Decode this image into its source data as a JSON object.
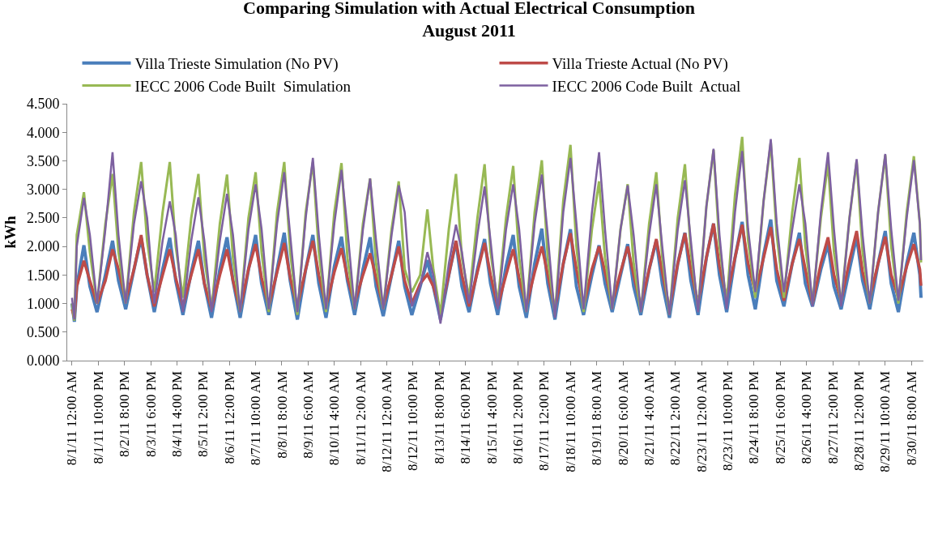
{
  "chart_data": {
    "type": "line",
    "title": "Comparing Simulation with Actual Electrical Consumption\nAugust 2011",
    "ylabel": "kWh",
    "x": [
      "2011-08-01T00:00",
      "2011-08-01T02:00",
      "2011-08-01T04:00",
      "2011-08-01T10:00",
      "2011-08-01T15:00",
      "2011-08-01T21:00",
      "2011-08-02T04:00",
      "2011-08-02T10:00",
      "2011-08-02T15:00",
      "2011-08-02T21:00",
      "2011-08-03T04:00",
      "2011-08-03T10:00",
      "2011-08-03T15:00",
      "2011-08-03T21:00",
      "2011-08-04T04:00",
      "2011-08-04T10:00",
      "2011-08-04T15:00",
      "2011-08-04T21:00",
      "2011-08-05T04:00",
      "2011-08-05T10:00",
      "2011-08-05T15:00",
      "2011-08-05T21:00",
      "2011-08-06T04:00",
      "2011-08-06T10:00",
      "2011-08-06T15:00",
      "2011-08-06T21:00",
      "2011-08-07T04:00",
      "2011-08-07T10:00",
      "2011-08-07T15:00",
      "2011-08-07T21:00",
      "2011-08-08T04:00",
      "2011-08-08T10:00",
      "2011-08-08T15:00",
      "2011-08-08T21:00",
      "2011-08-09T04:00",
      "2011-08-09T10:00",
      "2011-08-09T15:00",
      "2011-08-09T21:00",
      "2011-08-10T04:00",
      "2011-08-10T10:00",
      "2011-08-10T15:00",
      "2011-08-10T21:00",
      "2011-08-11T04:00",
      "2011-08-11T10:00",
      "2011-08-11T15:00",
      "2011-08-11T21:00",
      "2011-08-12T04:00",
      "2011-08-12T10:00",
      "2011-08-12T15:00",
      "2011-08-12T21:00",
      "2011-08-13T04:00",
      "2011-08-13T10:00",
      "2011-08-13T15:00",
      "2011-08-13T21:00",
      "2011-08-14T04:00",
      "2011-08-14T10:00",
      "2011-08-14T15:00",
      "2011-08-14T21:00",
      "2011-08-15T04:00",
      "2011-08-15T10:00",
      "2011-08-15T15:00",
      "2011-08-15T21:00",
      "2011-08-16T04:00",
      "2011-08-16T10:00",
      "2011-08-16T15:00",
      "2011-08-16T21:00",
      "2011-08-17T04:00",
      "2011-08-17T10:00",
      "2011-08-17T15:00",
      "2011-08-17T21:00",
      "2011-08-18T04:00",
      "2011-08-18T10:00",
      "2011-08-18T15:00",
      "2011-08-18T21:00",
      "2011-08-19T04:00",
      "2011-08-19T10:00",
      "2011-08-19T15:00",
      "2011-08-19T21:00",
      "2011-08-20T04:00",
      "2011-08-20T10:00",
      "2011-08-20T15:00",
      "2011-08-20T21:00",
      "2011-08-21T04:00",
      "2011-08-21T10:00",
      "2011-08-21T15:00",
      "2011-08-21T21:00",
      "2011-08-22T04:00",
      "2011-08-22T10:00",
      "2011-08-22T15:00",
      "2011-08-22T21:00",
      "2011-08-23T04:00",
      "2011-08-23T10:00",
      "2011-08-23T15:00",
      "2011-08-23T21:00",
      "2011-08-24T04:00",
      "2011-08-24T10:00",
      "2011-08-24T15:00",
      "2011-08-24T21:00",
      "2011-08-25T04:00",
      "2011-08-25T10:00",
      "2011-08-25T15:00",
      "2011-08-25T21:00",
      "2011-08-26T04:00",
      "2011-08-26T10:00",
      "2011-08-26T15:00",
      "2011-08-26T21:00",
      "2011-08-27T04:00",
      "2011-08-27T10:00",
      "2011-08-27T15:00",
      "2011-08-27T21:00",
      "2011-08-28T04:00",
      "2011-08-28T10:00",
      "2011-08-28T15:00",
      "2011-08-28T21:00",
      "2011-08-29T04:00",
      "2011-08-29T10:00",
      "2011-08-29T15:00",
      "2011-08-29T21:00",
      "2011-08-30T04:00",
      "2011-08-30T10:00",
      "2011-08-30T15:00",
      "2011-08-30T16:00"
    ],
    "series": [
      {
        "name": "Villa Trieste Simulation (No PV)",
        "color": "#4a7ebb",
        "values": [
          1.0,
          0.68,
          1.3,
          2.02,
          1.3,
          0.85,
          1.5,
          2.1,
          1.4,
          0.9,
          1.6,
          2.15,
          1.5,
          0.85,
          1.6,
          2.15,
          1.4,
          0.8,
          1.55,
          2.1,
          1.35,
          0.75,
          1.6,
          2.16,
          1.4,
          0.75,
          1.6,
          2.2,
          1.35,
          0.8,
          1.6,
          2.24,
          1.4,
          0.72,
          1.6,
          2.2,
          1.35,
          0.75,
          1.65,
          2.17,
          1.4,
          0.8,
          1.6,
          2.16,
          1.3,
          0.78,
          1.5,
          2.1,
          1.3,
          0.8,
          1.3,
          1.76,
          1.3,
          0.72,
          1.5,
          2.09,
          1.3,
          0.85,
          1.6,
          2.13,
          1.35,
          0.8,
          1.65,
          2.2,
          1.3,
          0.75,
          1.7,
          2.31,
          1.35,
          0.72,
          1.7,
          2.3,
          1.3,
          0.8,
          1.5,
          2.02,
          1.35,
          0.85,
          1.5,
          2.04,
          1.3,
          0.8,
          1.6,
          2.1,
          1.35,
          0.75,
          1.7,
          2.24,
          1.4,
          0.8,
          1.8,
          2.4,
          1.5,
          0.85,
          1.8,
          2.43,
          1.5,
          0.9,
          1.85,
          2.47,
          1.4,
          0.95,
          1.7,
          2.24,
          1.35,
          0.95,
          1.6,
          2.04,
          1.3,
          0.9,
          1.6,
          2.17,
          1.4,
          0.9,
          1.7,
          2.27,
          1.35,
          0.85,
          1.7,
          2.24,
          1.5,
          1.1
        ]
      },
      {
        "name": "Villa Trieste Actual (No PV)",
        "color": "#be4b48",
        "values": [
          0.9,
          0.75,
          1.3,
          1.75,
          1.4,
          1.0,
          1.4,
          1.95,
          1.6,
          1.05,
          1.6,
          2.2,
          1.5,
          0.95,
          1.5,
          1.95,
          1.45,
          0.95,
          1.5,
          1.95,
          1.35,
          0.9,
          1.5,
          1.95,
          1.4,
          0.9,
          1.6,
          2.04,
          1.45,
          0.95,
          1.55,
          2.06,
          1.45,
          0.95,
          1.6,
          2.1,
          1.5,
          0.95,
          1.55,
          1.97,
          1.45,
          1.0,
          1.5,
          1.88,
          1.45,
          0.95,
          1.5,
          2.0,
          1.4,
          1.0,
          1.35,
          1.51,
          1.3,
          0.85,
          1.5,
          2.1,
          1.5,
          0.95,
          1.55,
          2.06,
          1.5,
          0.95,
          1.5,
          1.95,
          1.45,
          0.95,
          1.55,
          2.0,
          1.5,
          0.9,
          1.7,
          2.23,
          1.6,
          0.95,
          1.6,
          2.0,
          1.55,
          1.0,
          1.55,
          2.0,
          1.5,
          0.95,
          1.6,
          2.13,
          1.55,
          0.9,
          1.7,
          2.23,
          1.6,
          1.0,
          1.8,
          2.4,
          1.65,
          1.1,
          1.8,
          2.38,
          1.7,
          1.2,
          1.8,
          2.34,
          1.6,
          1.05,
          1.7,
          2.13,
          1.6,
          1.0,
          1.7,
          2.16,
          1.5,
          1.05,
          1.75,
          2.27,
          1.55,
          1.1,
          1.7,
          2.17,
          1.5,
          1.1,
          1.65,
          2.04,
          1.6,
          1.31
        ]
      },
      {
        "name": "IECC 2006 Code Built  Simulation",
        "color": "#98b954",
        "values": [
          1.0,
          0.7,
          2.2,
          2.95,
          1.9,
          1.0,
          2.4,
          3.27,
          1.9,
          1.0,
          2.6,
          3.48,
          2.1,
          1.2,
          2.6,
          3.48,
          2.0,
          1.1,
          2.5,
          3.27,
          1.8,
          0.9,
          2.4,
          3.26,
          1.8,
          0.85,
          2.5,
          3.3,
          1.9,
          0.85,
          2.6,
          3.48,
          1.9,
          0.8,
          2.6,
          3.48,
          1.9,
          0.85,
          2.6,
          3.46,
          1.8,
          0.9,
          2.4,
          3.19,
          1.7,
          0.9,
          2.3,
          3.14,
          1.6,
          1.2,
          1.5,
          2.65,
          1.6,
          0.8,
          2.3,
          3.27,
          1.8,
          1.1,
          2.5,
          3.44,
          1.9,
          1.0,
          2.5,
          3.41,
          1.8,
          0.85,
          2.6,
          3.51,
          1.8,
          0.8,
          2.8,
          3.78,
          2.0,
          0.85,
          2.3,
          3.14,
          1.8,
          0.9,
          2.3,
          3.09,
          1.7,
          0.85,
          2.4,
          3.3,
          1.8,
          0.8,
          2.5,
          3.44,
          1.9,
          0.9,
          2.7,
          3.69,
          2.0,
          1.0,
          2.9,
          3.92,
          2.1,
          1.1,
          2.8,
          3.82,
          2.2,
          1.1,
          2.6,
          3.55,
          2.0,
          1.0,
          2.5,
          3.46,
          1.9,
          1.0,
          2.5,
          3.5,
          1.9,
          1.0,
          2.6,
          3.6,
          2.0,
          1.0,
          2.6,
          3.58,
          2.4,
          1.72
        ]
      },
      {
        "name": "IECC 2006 Code Built  Actual",
        "color": "#7d60a0",
        "values": [
          1.1,
          0.72,
          2.0,
          2.85,
          2.2,
          1.0,
          2.3,
          3.65,
          2.2,
          1.0,
          2.4,
          3.14,
          2.5,
          1.0,
          2.1,
          2.79,
          2.2,
          0.85,
          2.1,
          2.86,
          2.1,
          0.85,
          2.1,
          2.92,
          2.2,
          0.85,
          2.3,
          3.09,
          2.3,
          0.9,
          2.4,
          3.3,
          2.2,
          0.85,
          2.5,
          3.55,
          2.2,
          0.9,
          2.4,
          3.34,
          2.3,
          0.9,
          2.3,
          3.19,
          2.1,
          0.9,
          2.2,
          3.07,
          2.6,
          0.95,
          1.3,
          1.9,
          1.5,
          0.65,
          1.7,
          2.38,
          1.9,
          1.0,
          2.2,
          3.05,
          2.1,
          0.9,
          2.3,
          3.09,
          2.3,
          0.85,
          2.4,
          3.26,
          2.2,
          0.75,
          2.6,
          3.55,
          2.4,
          0.9,
          2.6,
          3.65,
          2.3,
          0.9,
          2.3,
          3.07,
          2.2,
          0.85,
          2.2,
          3.09,
          2.0,
          0.8,
          2.3,
          3.16,
          2.1,
          0.85,
          2.7,
          3.71,
          2.2,
          0.9,
          2.6,
          3.67,
          2.3,
          1.2,
          2.8,
          3.88,
          2.4,
          1.2,
          2.3,
          3.09,
          2.4,
          0.95,
          2.6,
          3.65,
          2.3,
          0.95,
          2.5,
          3.53,
          2.2,
          1.0,
          2.6,
          3.62,
          2.3,
          1.05,
          2.5,
          3.51,
          2.4,
          1.76
        ]
      }
    ],
    "xlim": [
      "2011-07-31T20:00",
      "2011-08-30T18:00"
    ],
    "xticks": [
      {
        "value": "2011-08-01T00:00",
        "label": "8/1/11 12:00 AM"
      },
      {
        "value": "2011-08-01T22:00",
        "label": "8/1/11 10:00 PM"
      },
      {
        "value": "2011-08-02T20:00",
        "label": "8/2/11 8:00 PM"
      },
      {
        "value": "2011-08-03T18:00",
        "label": "8/3/11 6:00 PM"
      },
      {
        "value": "2011-08-04T16:00",
        "label": "8/4/11 4:00 PM"
      },
      {
        "value": "2011-08-05T14:00",
        "label": "8/5/11 2:00 PM"
      },
      {
        "value": "2011-08-06T12:00",
        "label": "8/6/11 12:00 PM"
      },
      {
        "value": "2011-08-07T10:00",
        "label": "8/7/11 10:00 AM"
      },
      {
        "value": "2011-08-08T08:00",
        "label": "8/8/11 8:00 AM"
      },
      {
        "value": "2011-08-09T06:00",
        "label": "8/9/11 6:00 AM"
      },
      {
        "value": "2011-08-10T04:00",
        "label": "8/10/11 4:00 AM"
      },
      {
        "value": "2011-08-11T02:00",
        "label": "8/11/11 2:00 AM"
      },
      {
        "value": "2011-08-12T00:00",
        "label": "8/12/11 12:00 AM"
      },
      {
        "value": "2011-08-12T22:00",
        "label": "8/12/11 10:00 PM"
      },
      {
        "value": "2011-08-13T20:00",
        "label": "8/13/11 8:00 PM"
      },
      {
        "value": "2011-08-14T18:00",
        "label": "8/14/11 6:00 PM"
      },
      {
        "value": "2011-08-15T16:00",
        "label": "8/15/11 4:00 PM"
      },
      {
        "value": "2011-08-16T14:00",
        "label": "8/16/11 2:00 PM"
      },
      {
        "value": "2011-08-17T12:00",
        "label": "8/17/11 12:00 PM"
      },
      {
        "value": "2011-08-18T10:00",
        "label": "8/18/11 10:00 AM"
      },
      {
        "value": "2011-08-19T08:00",
        "label": "8/19/11 8:00 AM"
      },
      {
        "value": "2011-08-20T06:00",
        "label": "8/20/11 6:00 AM"
      },
      {
        "value": "2011-08-21T04:00",
        "label": "8/21/11 4:00 AM"
      },
      {
        "value": "2011-08-22T02:00",
        "label": "8/22/11 2:00 AM"
      },
      {
        "value": "2011-08-23T00:00",
        "label": "8/23/11 12:00 AM"
      },
      {
        "value": "2011-08-23T22:00",
        "label": "8/23/11 10:00 PM"
      },
      {
        "value": "2011-08-24T20:00",
        "label": "8/24/11 8:00 PM"
      },
      {
        "value": "2011-08-25T18:00",
        "label": "8/25/11 6:00 PM"
      },
      {
        "value": "2011-08-26T16:00",
        "label": "8/26/11 4:00 PM"
      },
      {
        "value": "2011-08-27T14:00",
        "label": "8/27/11 2:00 PM"
      },
      {
        "value": "2011-08-28T12:00",
        "label": "8/28/11 12:00 PM"
      },
      {
        "value": "2011-08-29T10:00",
        "label": "8/29/11 10:00 AM"
      },
      {
        "value": "2011-08-30T08:00",
        "label": "8/30/11 8:00 AM"
      }
    ],
    "ylim": [
      0,
      4.5
    ],
    "yticks": [
      {
        "value": 0,
        "label": "0.000"
      },
      {
        "value": 0.5,
        "label": "0.500"
      },
      {
        "value": 1,
        "label": "1.000"
      },
      {
        "value": 1.5,
        "label": "1.500"
      },
      {
        "value": 2,
        "label": "2.000"
      },
      {
        "value": 2.5,
        "label": "2.500"
      },
      {
        "value": 3,
        "label": "3.000"
      },
      {
        "value": 3.5,
        "label": "3.500"
      },
      {
        "value": 4,
        "label": "4.000"
      },
      {
        "value": 4.5,
        "label": "4.500"
      }
    ],
    "grid": false,
    "legend": "top",
    "marker": "none",
    "line_style": "solid"
  }
}
